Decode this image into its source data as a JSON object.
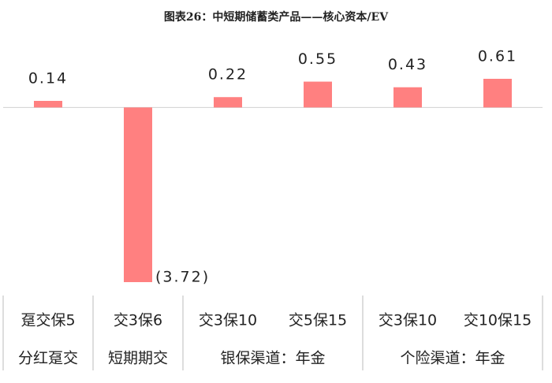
{
  "chart_data": {
    "type": "bar",
    "title": "图表26：中短期储蓄类产品——核心资本/EV",
    "categories": [
      "趸交保5",
      "交3保6",
      "交3保10",
      "交5保15",
      "交3保10",
      "交10保15"
    ],
    "groups": [
      "分红趸交",
      "短期期交",
      "银保渠道：年金",
      null,
      "个险渠道：年金",
      null
    ],
    "values": [
      0.14,
      -3.72,
      0.22,
      0.55,
      0.43,
      0.61
    ],
    "value_labels": [
      "0.14",
      "(3.72)",
      "0.22",
      "0.55",
      "0.43",
      "0.61"
    ],
    "color": "#ff8080"
  }
}
